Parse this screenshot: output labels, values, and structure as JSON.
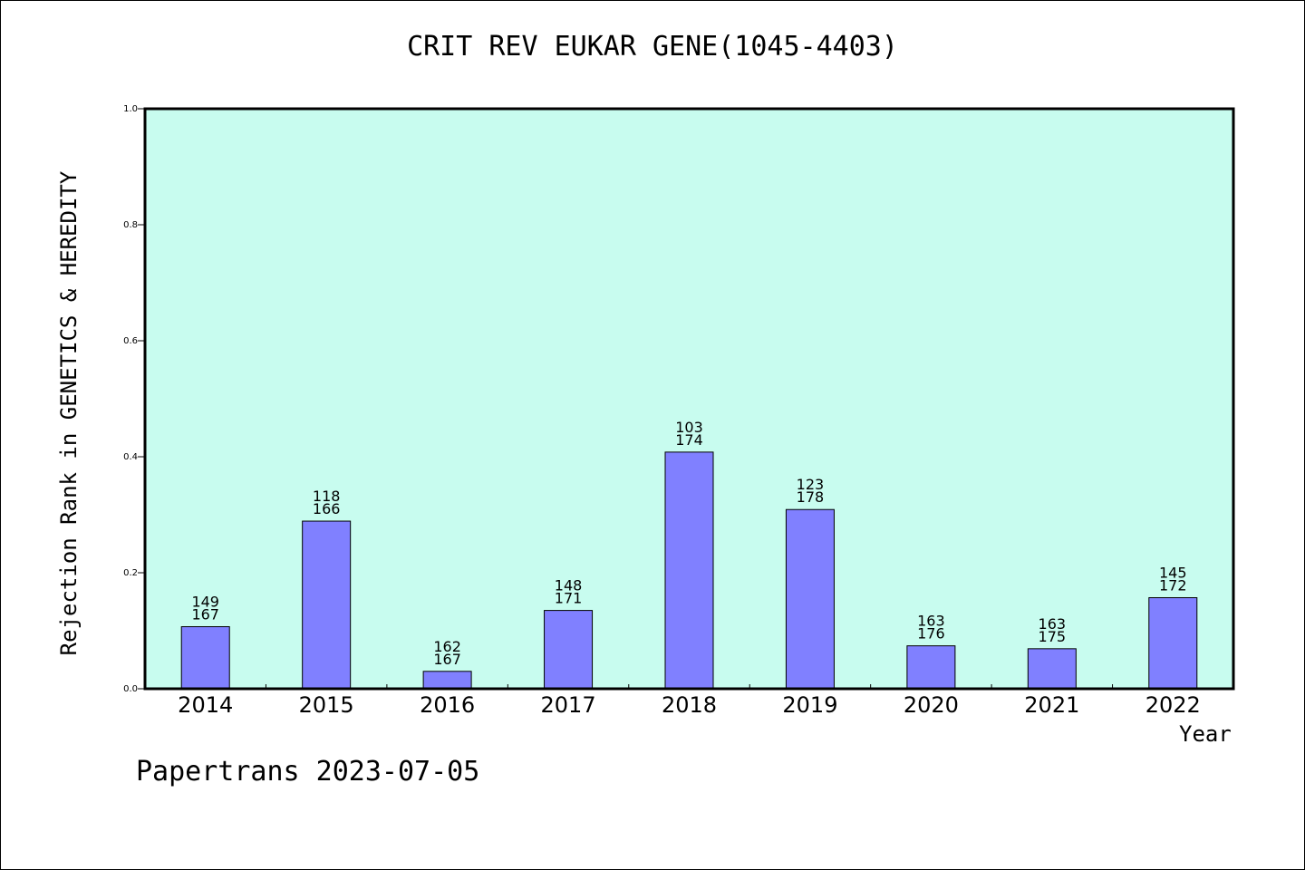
{
  "chart_data": {
    "type": "bar",
    "title": "CRIT REV EUKAR GENE(1045-4403)",
    "xlabel": "Year",
    "ylabel": "Rejection Rank in GENETICS & HEREDITY",
    "categories": [
      "2014",
      "2015",
      "2016",
      "2017",
      "2018",
      "2019",
      "2020",
      "2021",
      "2022"
    ],
    "values": [
      0.107,
      0.289,
      0.03,
      0.135,
      0.408,
      0.309,
      0.074,
      0.069,
      0.157
    ],
    "labels": [
      [
        "149",
        "167"
      ],
      [
        "118",
        "166"
      ],
      [
        "162",
        "167"
      ],
      [
        "148",
        "171"
      ],
      [
        "103",
        "174"
      ],
      [
        "123",
        "178"
      ],
      [
        "163",
        "176"
      ],
      [
        "163",
        "175"
      ],
      [
        "145",
        "172"
      ]
    ],
    "ylim": [
      0,
      1.0
    ],
    "yticks": [
      "0.0",
      "0.2",
      "0.4",
      "0.6",
      "0.8",
      "1.0"
    ],
    "colors": {
      "plot_bg": "#c8fcef",
      "bar": "#8080ff",
      "bar_edge": "#000000"
    },
    "grid": false,
    "legend": "none"
  },
  "footer": "Papertrans 2023-07-05"
}
